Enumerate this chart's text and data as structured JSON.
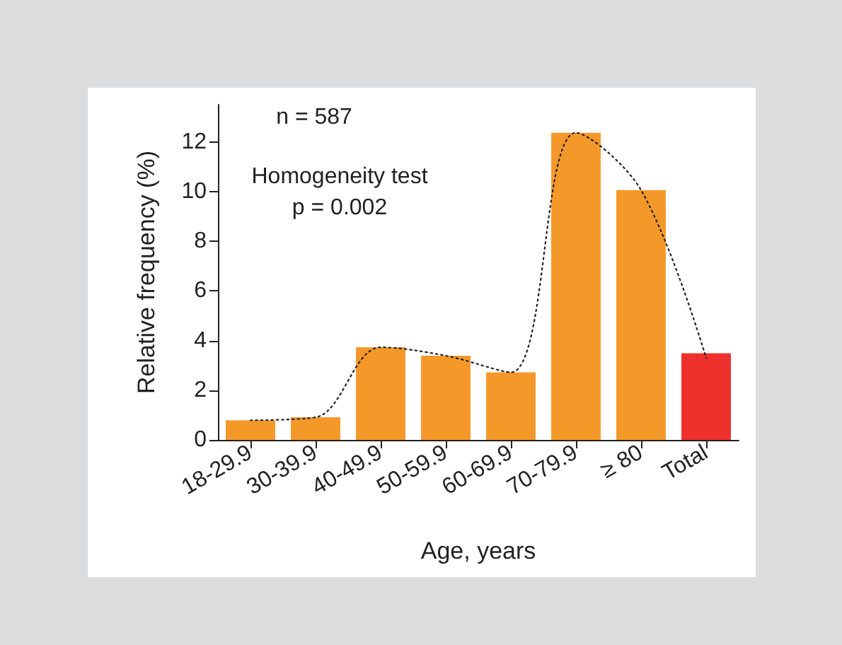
{
  "chart_data": {
    "type": "bar",
    "xlabel": "Age, years",
    "ylabel": "Relative frequency (%)",
    "categories": [
      "18-29.9",
      "30-39.9",
      "40-49.9",
      "50-59.9",
      "60-69.9",
      "70-79.9",
      "≥ 80",
      "Total"
    ],
    "series": [
      {
        "values": [
          0.79,
          0.91,
          3.73,
          3.39,
          2.72,
          12.37,
          10.06,
          3.49
        ],
        "colors": [
          "#f5982a",
          "#f5982a",
          "#f5982a",
          "#f5982a",
          "#f5982a",
          "#f5982a",
          "#f5982a",
          "#ee302d"
        ]
      },
      {
        "type": "line",
        "color": "#222222",
        "line_style": "dotted",
        "values": [
          0.79,
          0.91,
          3.73,
          3.39,
          2.72,
          12.37,
          10.06,
          3.3
        ]
      }
    ],
    "ylim": [
      0,
      13.5
    ],
    "yticks": [
      0,
      2,
      4,
      6,
      8,
      10,
      12
    ],
    "grid": false,
    "annotations": [
      "n = 587",
      "Homogeneity test\np = 0.002"
    ]
  }
}
